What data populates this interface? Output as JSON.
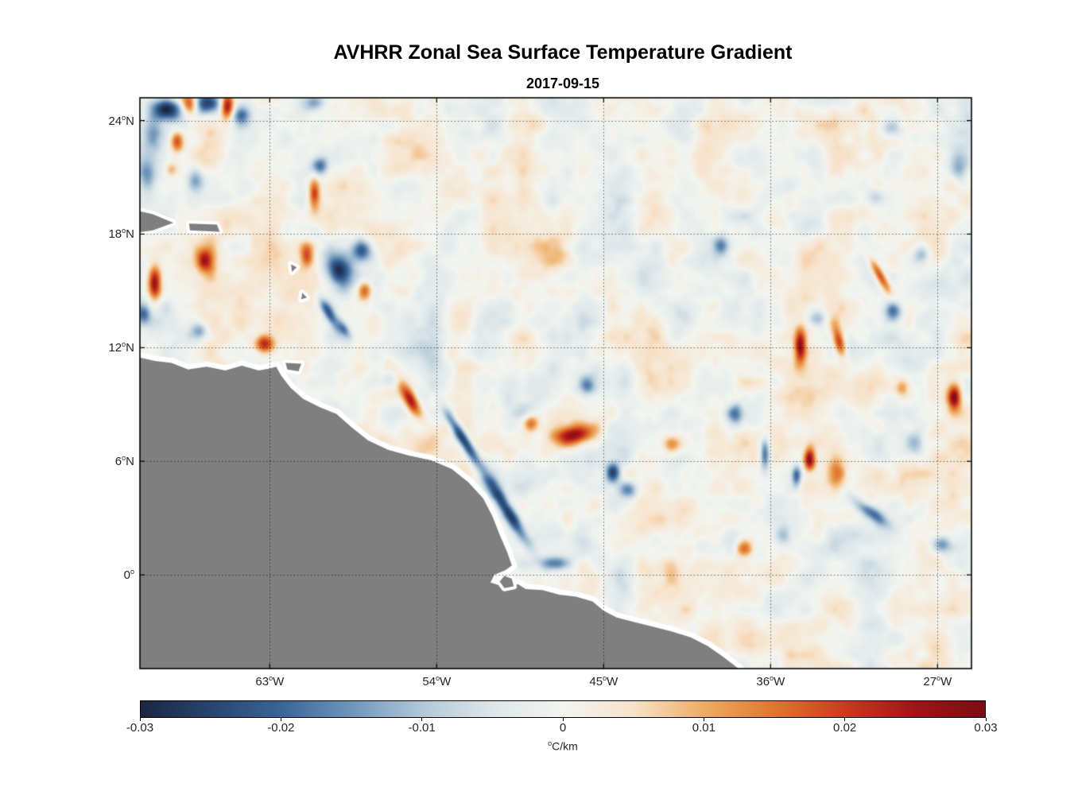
{
  "title": "AVHRR Zonal Sea Surface Temperature Gradient",
  "subtitle": "2017-09-15",
  "colors": {
    "land": "#7f7f7f",
    "coast_gap": "#ffffff",
    "axis": "#000000",
    "tick_text": "#262626",
    "grid": "rgba(0,0,0,0.6)",
    "background": "#ffffff"
  },
  "chart_data": {
    "type": "heatmap",
    "title": "AVHRR Zonal Sea Surface Temperature Gradient",
    "subtitle": "2017-09-15",
    "units": "°C/km",
    "units_display": {
      "sup": "o",
      "rest": "C/km"
    },
    "grid": "dotted",
    "lon_range": [
      -70.0,
      -25.17
    ],
    "lat_range": [
      -4.95,
      25.2
    ],
    "xticks": [
      {
        "lon": -63,
        "num": "63",
        "sup": "o",
        "hem": "W"
      },
      {
        "lon": -54,
        "num": "54",
        "sup": "o",
        "hem": "W"
      },
      {
        "lon": -45,
        "num": "45",
        "sup": "o",
        "hem": "W"
      },
      {
        "lon": -36,
        "num": "36",
        "sup": "o",
        "hem": "W"
      },
      {
        "lon": -27,
        "num": "27",
        "sup": "o",
        "hem": "W"
      }
    ],
    "yticks": [
      {
        "lat": 24,
        "num": "24",
        "sup": "o",
        "hem": "N"
      },
      {
        "lat": 18,
        "num": "18",
        "sup": "o",
        "hem": "N"
      },
      {
        "lat": 12,
        "num": "12",
        "sup": "o",
        "hem": "N"
      },
      {
        "lat": 6,
        "num": "6",
        "sup": "o",
        "hem": "N"
      },
      {
        "lat": 0,
        "num": "0",
        "sup": "o",
        "hem": ""
      }
    ],
    "colorbar": {
      "min": -0.03,
      "max": 0.03,
      "tick_values": [
        -0.03,
        -0.02,
        -0.01,
        0,
        0.01,
        0.02,
        0.03
      ],
      "tick_labels": [
        "-0.03",
        "-0.02",
        "-0.01",
        "0",
        "0.01",
        "0.02",
        "0.03"
      ],
      "label": "°C/km",
      "orientation": "horizontal"
    },
    "colormap": [
      {
        "v": -0.03,
        "c": "#1b2742"
      },
      {
        "v": -0.025,
        "c": "#28456e"
      },
      {
        "v": -0.02,
        "c": "#3a6598"
      },
      {
        "v": -0.015,
        "c": "#6f96bb"
      },
      {
        "v": -0.01,
        "c": "#b2c8d9"
      },
      {
        "v": -0.005,
        "c": "#dde7ea"
      },
      {
        "v": 0.0,
        "c": "#f3f5f0"
      },
      {
        "v": 0.005,
        "c": "#f7e3cb"
      },
      {
        "v": 0.01,
        "c": "#eeac64"
      },
      {
        "v": 0.015,
        "c": "#e0772f"
      },
      {
        "v": 0.02,
        "c": "#cd3a1d"
      },
      {
        "v": 0.025,
        "c": "#a21318"
      },
      {
        "v": 0.03,
        "c": "#7a0d12"
      }
    ],
    "noise": {
      "seed": 11,
      "octaves": [
        {
          "scale": 1.7,
          "amp": 0.0052
        },
        {
          "scale": 0.8,
          "amp": 0.0028
        },
        {
          "scale": 0.4,
          "amp": 0.0012
        }
      ]
    },
    "features": [
      {
        "lon": -68.6,
        "lat": 24.6,
        "amp": -0.028,
        "rx": 0.9,
        "ry": 0.55,
        "rot": 0
      },
      {
        "lon": -67.3,
        "lat": 24.85,
        "amp": 0.026,
        "rx": 0.45,
        "ry": 0.55,
        "rot": 0
      },
      {
        "lon": -66.4,
        "lat": 24.9,
        "amp": -0.03,
        "rx": 0.85,
        "ry": 0.6,
        "rot": 0
      },
      {
        "lon": -65.3,
        "lat": 24.8,
        "amp": 0.03,
        "rx": 0.35,
        "ry": 0.7,
        "rot": 0
      },
      {
        "lon": -64.5,
        "lat": 24.3,
        "amp": -0.016,
        "rx": 0.5,
        "ry": 0.45,
        "rot": 0
      },
      {
        "lon": -60.6,
        "lat": 24.9,
        "amp": -0.013,
        "rx": 0.6,
        "ry": 0.4,
        "rot": 0
      },
      {
        "lon": -29.5,
        "lat": 23.6,
        "amp": -0.012,
        "rx": 0.6,
        "ry": 0.5,
        "rot": 0
      },
      {
        "lon": -25.8,
        "lat": 21.5,
        "amp": -0.012,
        "rx": 0.5,
        "ry": 0.8,
        "rot": 0
      },
      {
        "lon": -69.3,
        "lat": 23.1,
        "amp": -0.013,
        "rx": 0.5,
        "ry": 0.8,
        "rot": 0
      },
      {
        "lon": -68.0,
        "lat": 22.9,
        "amp": 0.02,
        "rx": 0.35,
        "ry": 0.55,
        "rot": 0
      },
      {
        "lon": -69.6,
        "lat": 21.0,
        "amp": -0.015,
        "rx": 0.5,
        "ry": 0.9,
        "rot": 0
      },
      {
        "lon": -68.3,
        "lat": 21.4,
        "amp": 0.012,
        "rx": 0.35,
        "ry": 0.4,
        "rot": 0
      },
      {
        "lon": -67.0,
        "lat": 20.9,
        "amp": -0.012,
        "rx": 0.4,
        "ry": 0.6,
        "rot": 0
      },
      {
        "lon": -60.3,
        "lat": 21.6,
        "amp": -0.018,
        "rx": 0.5,
        "ry": 0.5,
        "rot": 0
      },
      {
        "lon": -60.6,
        "lat": 20.2,
        "amp": 0.022,
        "rx": 0.3,
        "ry": 0.9,
        "rot": 0
      },
      {
        "lon": -30.3,
        "lat": 19.9,
        "amp": -0.011,
        "rx": 0.6,
        "ry": 0.5,
        "rot": 0
      },
      {
        "lon": -38.7,
        "lat": 17.4,
        "amp": -0.016,
        "rx": 0.45,
        "ry": 0.5,
        "rot": 0
      },
      {
        "lon": -27.9,
        "lat": 16.9,
        "amp": -0.013,
        "rx": 0.5,
        "ry": 0.5,
        "rot": 0
      },
      {
        "lon": -66.5,
        "lat": 16.6,
        "amp": 0.02,
        "rx": 0.45,
        "ry": 0.6,
        "rot": 0
      },
      {
        "lon": -61.0,
        "lat": 16.9,
        "amp": 0.018,
        "rx": 0.35,
        "ry": 0.6,
        "rot": 0
      },
      {
        "lon": -59.2,
        "lat": 16.0,
        "amp": -0.028,
        "rx": 0.7,
        "ry": 0.85,
        "rot": 20
      },
      {
        "lon": -58.0,
        "lat": 17.1,
        "amp": -0.022,
        "rx": 0.55,
        "ry": 0.6,
        "rot": 0
      },
      {
        "lon": -57.9,
        "lat": 15.0,
        "amp": 0.02,
        "rx": 0.4,
        "ry": 0.5,
        "rot": 0
      },
      {
        "lon": -69.2,
        "lat": 15.4,
        "amp": 0.027,
        "rx": 0.35,
        "ry": 0.9,
        "rot": 0
      },
      {
        "lon": -69.8,
        "lat": 13.8,
        "amp": -0.014,
        "rx": 0.4,
        "ry": 0.5,
        "rot": 0
      },
      {
        "lon": -59.8,
        "lat": 13.8,
        "amp": -0.02,
        "rx": 0.28,
        "ry": 1.0,
        "rot": 30
      },
      {
        "lon": -59.0,
        "lat": 13.0,
        "amp": -0.014,
        "rx": 0.25,
        "ry": 0.6,
        "rot": 30
      },
      {
        "lon": -30.1,
        "lat": 15.8,
        "amp": 0.022,
        "rx": 0.25,
        "ry": 1.0,
        "rot": 30
      },
      {
        "lon": -29.4,
        "lat": 13.9,
        "amp": -0.022,
        "rx": 0.5,
        "ry": 0.55,
        "rot": 0
      },
      {
        "lon": -33.5,
        "lat": 13.6,
        "amp": -0.012,
        "rx": 0.55,
        "ry": 0.45,
        "rot": 0
      },
      {
        "lon": -66.8,
        "lat": 12.9,
        "amp": -0.016,
        "rx": 0.5,
        "ry": 0.5,
        "rot": 0
      },
      {
        "lon": -63.3,
        "lat": 12.2,
        "amp": 0.024,
        "rx": 0.55,
        "ry": 0.45,
        "rot": 0
      },
      {
        "lon": -34.4,
        "lat": 12.1,
        "amp": 0.026,
        "rx": 0.3,
        "ry": 0.9,
        "rot": 0
      },
      {
        "lon": -32.3,
        "lat": 12.3,
        "amp": 0.024,
        "rx": 0.3,
        "ry": 0.8,
        "rot": 15
      },
      {
        "lon": -56.5,
        "lat": 10.3,
        "amp": -0.01,
        "rx": 0.5,
        "ry": 0.5,
        "rot": 0
      },
      {
        "lon": -55.4,
        "lat": 9.2,
        "amp": 0.026,
        "rx": 0.35,
        "ry": 1.0,
        "rot": 30
      },
      {
        "lon": -45.9,
        "lat": 10.0,
        "amp": -0.015,
        "rx": 0.45,
        "ry": 0.5,
        "rot": 0
      },
      {
        "lon": -28.9,
        "lat": 9.9,
        "amp": 0.012,
        "rx": 0.4,
        "ry": 0.5,
        "rot": 0
      },
      {
        "lon": -26.1,
        "lat": 9.4,
        "amp": 0.026,
        "rx": 0.35,
        "ry": 0.7,
        "rot": 0
      },
      {
        "lon": -37.9,
        "lat": 8.5,
        "amp": -0.014,
        "rx": 0.4,
        "ry": 0.5,
        "rot": 0
      },
      {
        "lon": -48.9,
        "lat": 8.0,
        "amp": 0.018,
        "rx": 0.45,
        "ry": 0.45,
        "rot": 0
      },
      {
        "lon": -46.6,
        "lat": 7.4,
        "amp": 0.028,
        "rx": 1.1,
        "ry": 0.55,
        "rot": 10
      },
      {
        "lon": -52.6,
        "lat": 7.2,
        "amp": -0.03,
        "rx": 0.3,
        "ry": 1.6,
        "rot": 32
      },
      {
        "lon": -50.2,
        "lat": 3.4,
        "amp": -0.028,
        "rx": 0.35,
        "ry": 2.0,
        "rot": 32
      },
      {
        "lon": -41.3,
        "lat": 6.9,
        "amp": 0.012,
        "rx": 0.5,
        "ry": 0.45,
        "rot": 0
      },
      {
        "lon": -36.3,
        "lat": 6.4,
        "amp": -0.022,
        "rx": 0.25,
        "ry": 0.8,
        "rot": 0
      },
      {
        "lon": -33.9,
        "lat": 6.1,
        "amp": 0.028,
        "rx": 0.3,
        "ry": 0.6,
        "rot": 0
      },
      {
        "lon": -34.6,
        "lat": 5.2,
        "amp": -0.02,
        "rx": 0.25,
        "ry": 0.6,
        "rot": 0
      },
      {
        "lon": -32.4,
        "lat": 5.4,
        "amp": 0.012,
        "rx": 0.5,
        "ry": 0.7,
        "rot": 0
      },
      {
        "lon": -28.2,
        "lat": 7.0,
        "amp": -0.012,
        "rx": 0.5,
        "ry": 0.6,
        "rot": 0
      },
      {
        "lon": -44.5,
        "lat": 5.4,
        "amp": -0.026,
        "rx": 0.4,
        "ry": 0.55,
        "rot": 0
      },
      {
        "lon": -43.7,
        "lat": 4.5,
        "amp": -0.018,
        "rx": 0.5,
        "ry": 0.5,
        "rot": 0
      },
      {
        "lon": -30.6,
        "lat": 3.3,
        "amp": -0.02,
        "rx": 0.35,
        "ry": 1.2,
        "rot": 55
      },
      {
        "lon": -26.8,
        "lat": 1.6,
        "amp": -0.018,
        "rx": 0.55,
        "ry": 0.5,
        "rot": 0
      },
      {
        "lon": -47.7,
        "lat": 0.6,
        "amp": -0.018,
        "rx": 0.9,
        "ry": 0.4,
        "rot": 0
      },
      {
        "lon": -37.4,
        "lat": 1.4,
        "amp": 0.018,
        "rx": 0.45,
        "ry": 0.45,
        "rot": 0
      },
      {
        "lon": -35.3,
        "lat": 2.1,
        "amp": -0.012,
        "rx": 0.5,
        "ry": 0.5,
        "rot": 0
      },
      {
        "lon": -42.5,
        "lat": 3.0,
        "amp": 0.006,
        "rx": 2.2,
        "ry": 1.2,
        "rot": 0
      },
      {
        "lon": -33.0,
        "lat": 9.0,
        "amp": 0.005,
        "rx": 2.5,
        "ry": 1.8,
        "rot": 0
      },
      {
        "lon": -49.0,
        "lat": 16.5,
        "amp": 0.004,
        "rx": 3.0,
        "ry": 2.2,
        "rot": 0
      },
      {
        "lon": -55.0,
        "lat": 12.5,
        "amp": -0.004,
        "rx": 2.5,
        "ry": 1.8,
        "rot": 0
      },
      {
        "lon": -42.0,
        "lat": 16.0,
        "amp": -0.004,
        "rx": 3.0,
        "ry": 2.0,
        "rot": 0
      }
    ],
    "land": {
      "continent": [
        [
          -70.3,
          11.55
        ],
        [
          -69.2,
          11.3
        ],
        [
          -68.3,
          11.2
        ],
        [
          -67.4,
          10.85
        ],
        [
          -66.4,
          11.0
        ],
        [
          -65.4,
          10.8
        ],
        [
          -64.5,
          11.05
        ],
        [
          -63.6,
          10.8
        ],
        [
          -63.0,
          10.9
        ],
        [
          -62.65,
          11.0
        ],
        [
          -62.4,
          10.55
        ],
        [
          -61.9,
          9.9
        ],
        [
          -61.2,
          9.3
        ],
        [
          -60.3,
          8.85
        ],
        [
          -59.4,
          8.5
        ],
        [
          -58.6,
          7.8
        ],
        [
          -57.7,
          7.1
        ],
        [
          -56.6,
          6.6
        ],
        [
          -55.5,
          6.3
        ],
        [
          -54.3,
          6.05
        ],
        [
          -53.2,
          5.6
        ],
        [
          -52.3,
          4.9
        ],
        [
          -51.5,
          4.05
        ],
        [
          -51.0,
          3.1
        ],
        [
          -50.6,
          2.1
        ],
        [
          -50.2,
          1.2
        ],
        [
          -49.95,
          0.5
        ],
        [
          -50.3,
          0.25
        ],
        [
          -50.9,
          0.0
        ],
        [
          -51.1,
          -0.4
        ],
        [
          -50.45,
          -0.6
        ],
        [
          -49.6,
          -0.5
        ],
        [
          -49.2,
          -0.75
        ],
        [
          -48.3,
          -0.8
        ],
        [
          -47.4,
          -1.05
        ],
        [
          -46.5,
          -1.15
        ],
        [
          -45.6,
          -1.4
        ],
        [
          -45.0,
          -1.9
        ],
        [
          -44.3,
          -2.25
        ],
        [
          -43.3,
          -2.5
        ],
        [
          -42.3,
          -2.75
        ],
        [
          -41.3,
          -3.0
        ],
        [
          -40.3,
          -3.3
        ],
        [
          -39.4,
          -3.75
        ],
        [
          -38.6,
          -4.3
        ],
        [
          -37.8,
          -4.9
        ],
        [
          -37.2,
          -5.5
        ],
        [
          -36.9,
          -6.5
        ],
        [
          -70.6,
          -6.5
        ]
      ],
      "islands": [
        [
          [
            -70.4,
            19.3
          ],
          [
            -69.3,
            19.05
          ],
          [
            -68.2,
            18.6
          ],
          [
            -69.3,
            18.2
          ],
          [
            -70.4,
            18.05
          ]
        ],
        [
          [
            -67.35,
            18.55
          ],
          [
            -65.85,
            18.5
          ],
          [
            -65.7,
            18.12
          ],
          [
            -67.3,
            18.2
          ]
        ],
        [
          [
            -62.15,
            11.2
          ],
          [
            -61.3,
            11.15
          ],
          [
            -61.45,
            10.75
          ],
          [
            -62.05,
            10.85
          ]
        ],
        [
          [
            -61.85,
            16.4
          ],
          [
            -61.55,
            16.25
          ],
          [
            -61.8,
            16.0
          ]
        ],
        [
          [
            -61.25,
            14.9
          ],
          [
            -61.0,
            14.65
          ],
          [
            -61.3,
            14.55
          ]
        ],
        [
          [
            -50.35,
            -0.05
          ],
          [
            -49.95,
            -0.2
          ],
          [
            -49.85,
            -0.6
          ],
          [
            -50.35,
            -0.7
          ],
          [
            -50.6,
            -0.35
          ]
        ]
      ]
    }
  }
}
